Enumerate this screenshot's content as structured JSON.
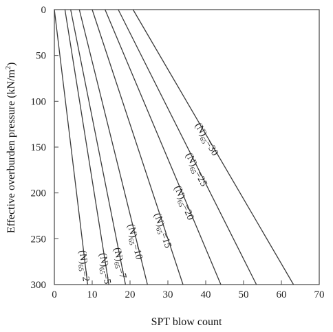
{
  "chart_data": {
    "type": "line",
    "xlabel": "SPT blow count",
    "ylabel_main": "Effective overburden pressure (kN/m",
    "ylabel_sup": "2",
    "ylabel_close": ")",
    "xlim": [
      0,
      70
    ],
    "ylim": [
      0,
      300
    ],
    "y_inverted": true,
    "x_axis_position": "bottom",
    "x_ticks": [
      "0",
      "10",
      "20",
      "30",
      "40",
      "50",
      "60",
      "70"
    ],
    "y_ticks": [
      "0",
      "50",
      "100",
      "150",
      "200",
      "250",
      "300"
    ],
    "grid": false,
    "legend": "none",
    "line_color": "#3a3a3a",
    "label_prefix": "(N)",
    "label_subscript": "65",
    "series": [
      {
        "name": "2",
        "label": "=2",
        "x": [
          0.0,
          8.8
        ],
        "y": [
          0,
          300
        ]
      },
      {
        "name": "5",
        "label": "=5",
        "x": [
          2.8,
          14.4
        ],
        "y": [
          0,
          300
        ]
      },
      {
        "name": "7",
        "label": "=7",
        "x": [
          4.3,
          18.8
        ],
        "y": [
          0,
          300
        ]
      },
      {
        "name": "10",
        "label": "=10",
        "x": [
          6.6,
          24.6
        ],
        "y": [
          0,
          300
        ]
      },
      {
        "name": "15",
        "label": "=15",
        "x": [
          10.0,
          34.0
        ],
        "y": [
          0,
          300
        ]
      },
      {
        "name": "20",
        "label": "=20",
        "x": [
          13.4,
          44.0
        ],
        "y": [
          0,
          300
        ]
      },
      {
        "name": "25",
        "label": "=25",
        "x": [
          16.9,
          53.4
        ],
        "y": [
          0,
          300
        ]
      },
      {
        "name": "30",
        "label": "=30",
        "x": [
          20.8,
          63.2
        ],
        "y": [
          0,
          300
        ]
      }
    ]
  }
}
